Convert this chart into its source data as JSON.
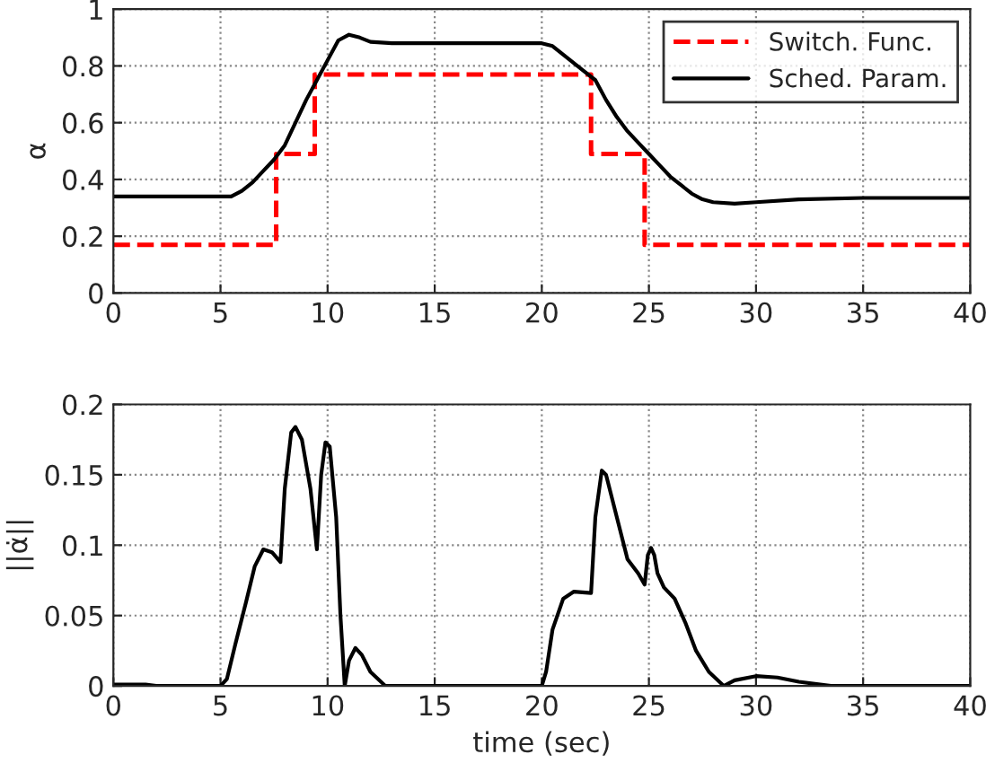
{
  "chart_data": [
    {
      "type": "line",
      "ylabel": "α",
      "xlim": [
        0,
        40
      ],
      "xticks": [
        0,
        5,
        10,
        15,
        20,
        25,
        30,
        35,
        40
      ],
      "ylim": [
        0,
        1
      ],
      "yticks": [
        0,
        0.2,
        0.4,
        0.6,
        0.8,
        1
      ],
      "grid": true,
      "legend": "top right",
      "series": [
        {
          "name": "Switch. Func.",
          "type": "step",
          "color": "#ff0000",
          "line_style": "dashed",
          "x": [
            0,
            7.6,
            9.4,
            22.3,
            24.8,
            40
          ],
          "values": [
            0.17,
            0.49,
            0.77,
            0.49,
            0.17,
            0.17
          ]
        },
        {
          "name": "Sched. Param.",
          "type": "line",
          "color": "#000000",
          "line_style": "solid",
          "x": [
            0,
            5,
            5.5,
            6,
            6.5,
            7,
            7.5,
            8,
            8.5,
            9,
            9.5,
            10,
            10.5,
            11,
            11.5,
            12,
            13,
            20,
            20.5,
            21,
            21.5,
            22,
            22.5,
            23,
            23.5,
            24,
            24.5,
            25,
            25.5,
            26,
            26.5,
            27,
            27.5,
            28,
            29,
            30,
            32,
            35,
            40
          ],
          "values": [
            0.34,
            0.34,
            0.34,
            0.36,
            0.39,
            0.43,
            0.47,
            0.52,
            0.6,
            0.68,
            0.75,
            0.82,
            0.89,
            0.91,
            0.9,
            0.885,
            0.88,
            0.88,
            0.87,
            0.84,
            0.81,
            0.78,
            0.75,
            0.68,
            0.62,
            0.57,
            0.53,
            0.49,
            0.45,
            0.41,
            0.38,
            0.35,
            0.33,
            0.32,
            0.315,
            0.32,
            0.33,
            0.335,
            0.335
          ]
        }
      ]
    },
    {
      "type": "line",
      "xlabel": "time (sec)",
      "ylabel": "||α̇||",
      "xlim": [
        0,
        40
      ],
      "xticks": [
        0,
        5,
        10,
        15,
        20,
        25,
        30,
        35,
        40
      ],
      "ylim": [
        0,
        0.2
      ],
      "yticks": [
        0,
        0.05,
        0.1,
        0.15,
        0.2
      ],
      "grid": true,
      "series": [
        {
          "color": "#000000",
          "line_style": "solid",
          "x": [
            0,
            1.5,
            2,
            5,
            5.3,
            5.7,
            6.2,
            6.6,
            7,
            7.4,
            7.8,
            8.0,
            8.3,
            8.5,
            8.8,
            9.2,
            9.5,
            9.7,
            9.9,
            10.1,
            10.4,
            10.6,
            10.8,
            11.0,
            11.3,
            11.6,
            12,
            12.7,
            20,
            20.2,
            20.5,
            21,
            21.5,
            22.3,
            22.5,
            22.8,
            23.0,
            23.5,
            24,
            24.5,
            24.8,
            24.95,
            25.1,
            25.25,
            25.4,
            25.7,
            26.2,
            26.7,
            27.2,
            27.8,
            28.5,
            29,
            30,
            31,
            32,
            33.5,
            40
          ],
          "values": [
            0.001,
            0.001,
            0,
            0,
            0.005,
            0.03,
            0.06,
            0.085,
            0.097,
            0.095,
            0.088,
            0.14,
            0.18,
            0.184,
            0.175,
            0.14,
            0.097,
            0.15,
            0.173,
            0.17,
            0.12,
            0.05,
            0,
            0.018,
            0.027,
            0.022,
            0.01,
            0,
            0,
            0.01,
            0.04,
            0.062,
            0.067,
            0.066,
            0.12,
            0.153,
            0.15,
            0.12,
            0.09,
            0.08,
            0.072,
            0.093,
            0.098,
            0.093,
            0.08,
            0.07,
            0.062,
            0.045,
            0.025,
            0.01,
            0,
            0.004,
            0.007,
            0.006,
            0.003,
            0,
            0
          ]
        }
      ]
    }
  ]
}
